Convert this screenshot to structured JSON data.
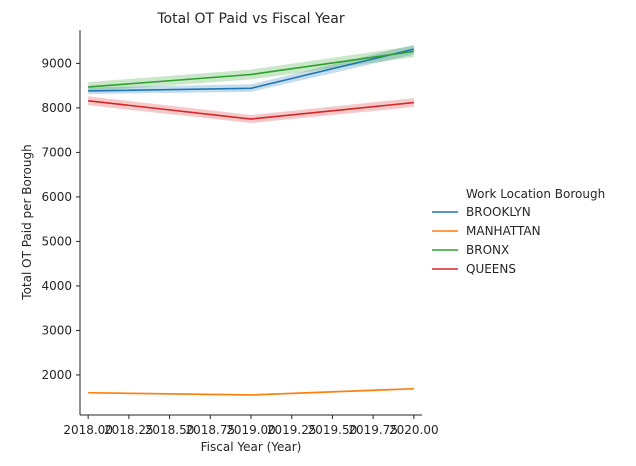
{
  "chart_data": {
    "type": "line",
    "title": "Total OT Paid vs Fiscal Year",
    "xlabel": "Fiscal Year (Year)",
    "ylabel": "Total OT Paid per Borough",
    "x": [
      2018,
      2019,
      2020
    ],
    "xlim": [
      2017.95,
      2020.05
    ],
    "ylim": [
      1100,
      9750
    ],
    "xticks": [
      "2018.00",
      "2018.25",
      "2018.50",
      "2018.75",
      "2019.00",
      "2019.25",
      "2019.50",
      "2019.75",
      "2020.00"
    ],
    "yticks": [
      2000,
      3000,
      4000,
      5000,
      6000,
      7000,
      8000,
      9000
    ],
    "grid": false,
    "legend": {
      "title": "Work Location Borough",
      "placement": "right"
    },
    "series": [
      {
        "name": "BROOKLYN",
        "color": "#1f77b4",
        "values": [
          8380,
          8440,
          9320
        ],
        "ci_low": [
          8310,
          8360,
          9200
        ],
        "ci_high": [
          8460,
          8530,
          9420
        ]
      },
      {
        "name": "MANHATTAN",
        "color": "#ff7f0e",
        "values": [
          1600,
          1550,
          1690
        ],
        "ci_low": [
          1580,
          1530,
          1665
        ],
        "ci_high": [
          1620,
          1570,
          1715
        ]
      },
      {
        "name": "BRONX",
        "color": "#2ca02c",
        "values": [
          8470,
          8750,
          9270
        ],
        "ci_low": [
          8370,
          8640,
          9140
        ],
        "ci_high": [
          8580,
          8860,
          9390
        ]
      },
      {
        "name": "QUEENS",
        "color": "#d62728",
        "values": [
          8160,
          7750,
          8120
        ],
        "ci_low": [
          8060,
          7660,
          8020
        ],
        "ci_high": [
          8260,
          7840,
          8220
        ]
      }
    ]
  }
}
